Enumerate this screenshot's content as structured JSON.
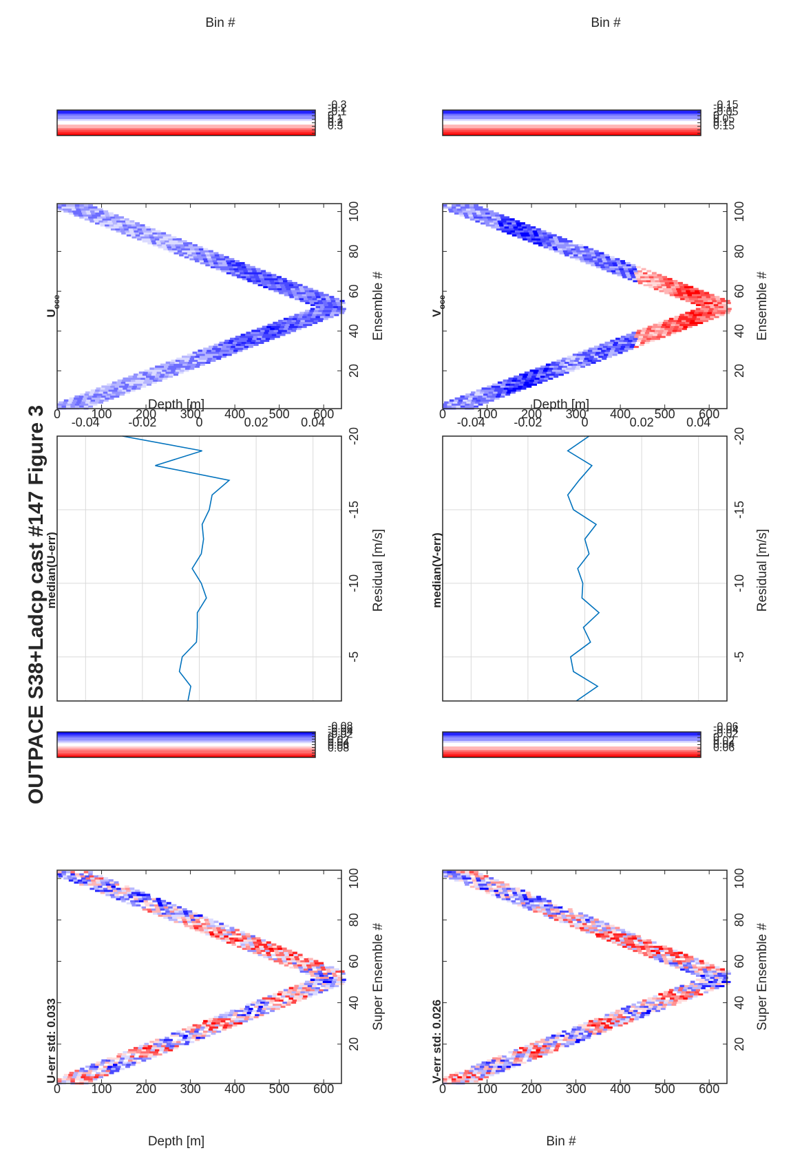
{
  "figure_title": "OUTPACE S38+Ladcp cast #147  Figure 3",
  "colors": {
    "red": "#ff0000",
    "blue": "#0000ff",
    "line": "#0072bd",
    "grid": "#d9d9d9",
    "text": "#262626"
  },
  "colorbars": [
    {
      "labels": [
        "0.08",
        "0.06",
        "0.04",
        "0.02",
        "0",
        "-0.02",
        "-0.04",
        "-0.06",
        "-0.08"
      ]
    },
    {
      "labels": [
        "0.3",
        "0.2",
        "0.1",
        "0",
        "-0.1",
        "-0.2",
        "-0.3"
      ]
    },
    {
      "labels": [
        "0.06",
        "0.04",
        "0.02",
        "0",
        "-0.02",
        "-0.04",
        "-0.06"
      ]
    },
    {
      "labels": [
        "0.15",
        "0.1",
        "0.05",
        "0",
        "-0.05",
        "-0.1",
        "-0.15"
      ]
    }
  ],
  "chart_data": [
    {
      "type": "heatmap",
      "title": "U-err std: 0.033",
      "xlabel": "Super Ensemble #",
      "ylabel": "Depth [m]",
      "xlim": [
        1,
        104
      ],
      "ylim": [
        0,
        640
      ],
      "xticks": [
        "20",
        "40",
        "60",
        "80",
        "100"
      ],
      "yticks": [
        "0",
        "100",
        "200",
        "300",
        "400",
        "500",
        "600"
      ],
      "clim": [
        -0.09,
        0.09
      ],
      "colormap": "red-white-blue"
    },
    {
      "type": "line",
      "title": "median(U-err)",
      "xlabel": "Residual [m/s]",
      "ylabel": "Bin #",
      "xlim": [
        -0.05,
        0.05
      ],
      "ylim": [
        -20,
        -2
      ],
      "xticks": [
        "-0.04",
        "-0.02",
        "0",
        "0.02",
        "0.04"
      ],
      "yticks": [
        "-5",
        "-10",
        "-15",
        "-20"
      ],
      "grid": true,
      "x": [
        -0.004,
        -0.003,
        -0.007,
        -0.006,
        -0.001,
        -0.0007,
        -0.0007,
        0.0025,
        0.0007,
        -0.0025,
        0.0007,
        0.0015,
        0.001,
        0.0035,
        0.0045,
        0.0105,
        -0.0155,
        0.001,
        -0.027
      ],
      "y": [
        -2,
        -3,
        -4,
        -5,
        -6,
        -7,
        -8,
        -9,
        -10,
        -11,
        -12,
        -13,
        -14,
        -15,
        -16,
        -17,
        -18,
        -19,
        -20
      ]
    },
    {
      "type": "heatmap",
      "title": "U",
      "title_sub": "oce",
      "xlabel": "Ensemble #",
      "ylabel": "Depth [m]",
      "xlim": [
        1,
        104
      ],
      "ylim": [
        0,
        640
      ],
      "xticks": [
        "20",
        "40",
        "60",
        "80",
        "100"
      ],
      "yticks": [
        "0",
        "100",
        "200",
        "300",
        "400",
        "500",
        "600"
      ],
      "clim": [
        -0.35,
        0.35
      ],
      "colormap": "red-white-blue"
    },
    {
      "type": "heatmap",
      "title": "V-err std: 0.026",
      "xlabel": "Super Ensemble #",
      "ylabel": "Bin #",
      "xlim": [
        1,
        104
      ],
      "ylim": [
        0,
        640
      ],
      "xticks": [
        "20",
        "40",
        "60",
        "80",
        "100"
      ],
      "yticks": [
        "0",
        "100",
        "200",
        "300",
        "400",
        "500",
        "600"
      ],
      "clim": [
        -0.07,
        0.07
      ],
      "colormap": "red-white-blue"
    },
    {
      "type": "line",
      "title": "median(V-err)",
      "xlabel": "Residual [m/s]",
      "ylabel": "Bin #",
      "xlim": [
        -0.05,
        0.05
      ],
      "ylim": [
        -20,
        -2
      ],
      "xticks": [
        "-0.04",
        "-0.02",
        "0",
        "0.02",
        "0.04"
      ],
      "yticks": [
        "-5",
        "-10",
        "-15",
        "-20"
      ],
      "grid": true,
      "x": [
        -0.003,
        0.0045,
        -0.004,
        -0.005,
        0.002,
        -0.0005,
        0.005,
        -0.001,
        -0.0007,
        -0.0025,
        0.0015,
        0.0,
        0.004,
        -0.004,
        -0.006,
        -0.002,
        0.0025,
        -0.006,
        0.0015
      ],
      "y": [
        -2,
        -3,
        -4,
        -5,
        -6,
        -7,
        -8,
        -9,
        -10,
        -11,
        -12,
        -13,
        -14,
        -15,
        -16,
        -17,
        -18,
        -19,
        -20
      ]
    },
    {
      "type": "heatmap",
      "title": "V",
      "title_sub": "oce",
      "xlabel": "Ensemble #",
      "ylabel": "Depth [m]",
      "xlim": [
        1,
        104
      ],
      "ylim": [
        0,
        640
      ],
      "xticks": [
        "20",
        "40",
        "60",
        "80",
        "100"
      ],
      "yticks": [
        "0",
        "100",
        "200",
        "300",
        "400",
        "500",
        "600"
      ],
      "clim": [
        -0.18,
        0.18
      ],
      "colormap": "red-white-blue"
    }
  ]
}
